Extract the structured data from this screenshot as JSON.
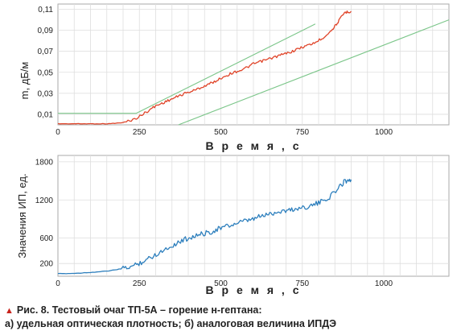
{
  "caption": {
    "line1": "Рис. 8. Тестовый очаг ТП-5А – горение н-гептана:",
    "line2": "а) удельная оптическая плотность; б) аналоговая величина ИПДЭ",
    "marker_color": "#c8221b"
  },
  "chart_data": [
    {
      "type": "line",
      "title": "",
      "xlabel": "В р е м я ,  с",
      "ylabel": "m, дБ/м",
      "xlim": [
        0,
        1200
      ],
      "ylim": [
        0,
        0.115
      ],
      "xticks": [
        "0",
        "250",
        "500",
        "750",
        "1000"
      ],
      "yticks": [
        "0,01",
        "0,03",
        "0,05",
        "0,07",
        "0,09",
        "0,11"
      ],
      "grid": true,
      "legend": "none",
      "series": [
        {
          "role": "measured",
          "color": "#e0452a",
          "x": [
            0,
            50,
            100,
            150,
            200,
            240,
            270,
            300,
            330,
            360,
            390,
            420,
            450,
            480,
            510,
            540,
            570,
            600,
            630,
            660,
            690,
            720,
            750,
            780,
            810,
            840,
            860,
            880,
            900
          ],
          "y": [
            0.001,
            0.001,
            0.001,
            0.001,
            0.002,
            0.006,
            0.012,
            0.018,
            0.022,
            0.026,
            0.03,
            0.033,
            0.037,
            0.041,
            0.046,
            0.05,
            0.053,
            0.058,
            0.061,
            0.064,
            0.067,
            0.07,
            0.074,
            0.077,
            0.082,
            0.09,
            0.098,
            0.107,
            0.108
          ]
        },
        {
          "role": "upper boundary",
          "color": "#7cc68a",
          "x": [
            0,
            240,
            790
          ],
          "y": [
            0.011,
            0.011,
            0.096
          ]
        },
        {
          "role": "lower boundary",
          "color": "#7cc68a",
          "x": [
            370,
            1200
          ],
          "y": [
            0.0,
            0.1
          ]
        }
      ]
    },
    {
      "type": "line",
      "title": "",
      "xlabel": "В р е м я ,  с",
      "ylabel": "Значения ИП, ед.",
      "xlim": [
        0,
        1200
      ],
      "ylim": [
        0,
        1900
      ],
      "xticks": [
        "0",
        "250",
        "500",
        "750",
        "1000"
      ],
      "yticks": [
        "200",
        "600",
        "1200",
        "1800"
      ],
      "grid": true,
      "legend": "none",
      "series": [
        {
          "role": "measured",
          "color": "#2d7fbd",
          "x": [
            0,
            50,
            100,
            150,
            200,
            230,
            260,
            290,
            320,
            350,
            380,
            410,
            440,
            470,
            500,
            530,
            560,
            590,
            620,
            650,
            680,
            710,
            740,
            770,
            800,
            830,
            860,
            880,
            900
          ],
          "y": [
            40,
            45,
            60,
            80,
            120,
            160,
            230,
            310,
            400,
            480,
            560,
            620,
            660,
            700,
            760,
            800,
            850,
            880,
            940,
            980,
            1020,
            1040,
            1070,
            1100,
            1150,
            1230,
            1380,
            1500,
            1520
          ]
        }
      ]
    }
  ]
}
